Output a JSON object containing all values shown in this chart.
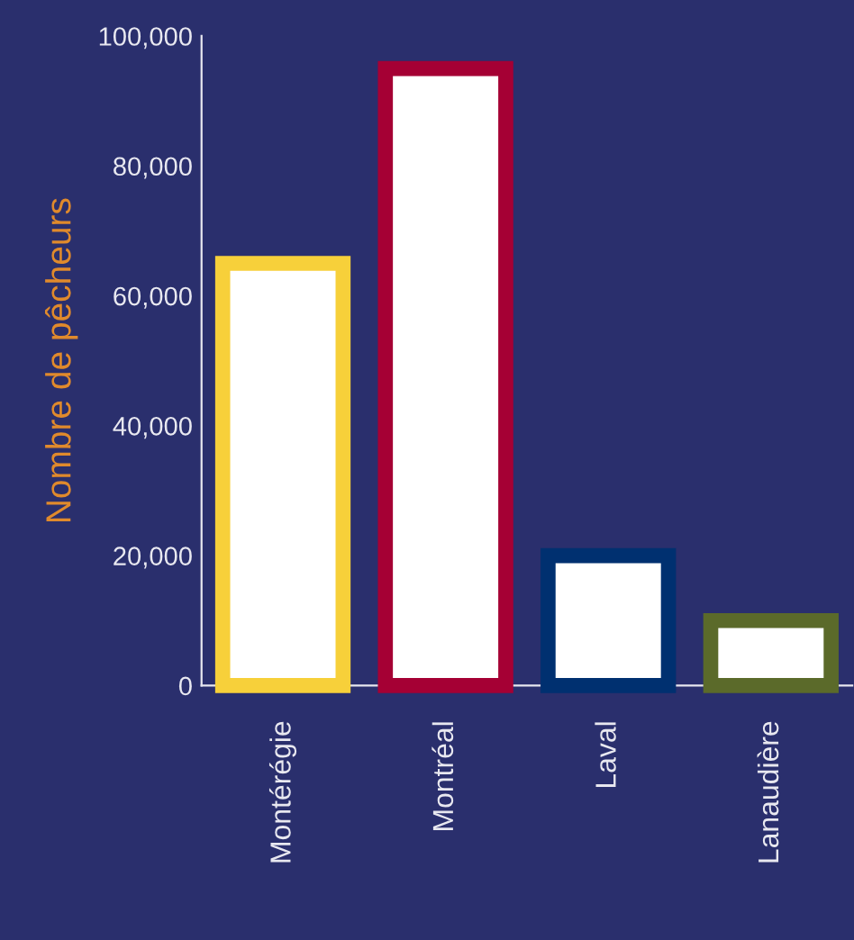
{
  "chart_data": {
    "type": "bar",
    "ylabel": "Nombre de pêcheurs",
    "categories": [
      "Montérégie",
      "Montréal",
      "Laval",
      "Lanaudière"
    ],
    "values": [
      65000,
      95000,
      20000,
      10000
    ],
    "colors": [
      "#f7d03a",
      "#a50034",
      "#003070",
      "#5b6a2a"
    ],
    "ylim": [
      0,
      100000
    ],
    "yticks": [
      {
        "value": 0,
        "label": "0"
      },
      {
        "value": 20000,
        "label": "20,000"
      },
      {
        "value": 40000,
        "label": "40,000"
      },
      {
        "value": 60000,
        "label": "60,000"
      },
      {
        "value": 80000,
        "label": "80,000"
      },
      {
        "value": 100000,
        "label": "100,000"
      }
    ],
    "grid": false,
    "legend": false
  }
}
